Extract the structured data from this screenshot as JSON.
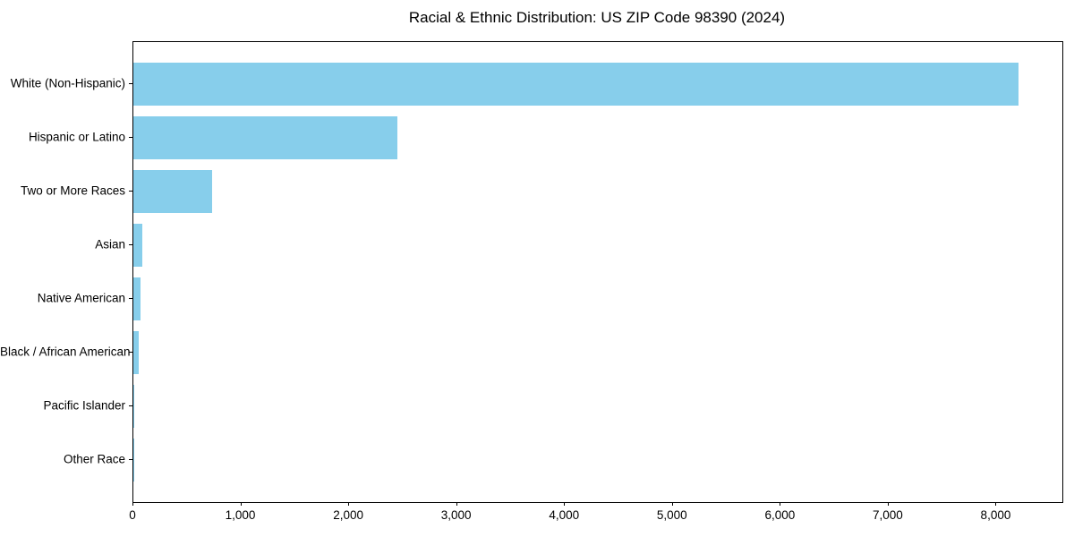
{
  "chart_data": {
    "type": "bar",
    "orientation": "horizontal",
    "title": "Racial & Ethnic Distribution: US ZIP Code 98390 (2024)",
    "categories": [
      "White (Non-Hispanic)",
      "Hispanic or Latino",
      "Two or More Races",
      "Asian",
      "Native American",
      "Black / African American",
      "Pacific Islander",
      "Other Race"
    ],
    "values": [
      8200,
      2450,
      730,
      85,
      65,
      48,
      10,
      2
    ],
    "bar_color": "#87CEEB",
    "xlim": [
      0,
      8610
    ],
    "x_ticks": [
      0,
      1000,
      2000,
      3000,
      4000,
      5000,
      6000,
      7000,
      8000
    ],
    "x_tick_labels": [
      "0",
      "1,000",
      "2,000",
      "3,000",
      "4,000",
      "5,000",
      "6,000",
      "7,000",
      "8,000"
    ],
    "xlabel": "",
    "ylabel": "",
    "grid": false,
    "legend_position": "none"
  }
}
